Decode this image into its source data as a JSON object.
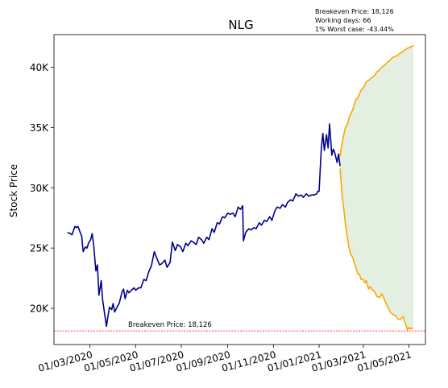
{
  "chart_data": {
    "type": "line",
    "title": "NLG",
    "ylabel": "Stock Price",
    "xlabel": "",
    "ylim": [
      17000,
      42700
    ],
    "xlim": [
      "2020-01-13",
      "2021-05-23"
    ],
    "y_ticks": [
      20000,
      25000,
      30000,
      35000,
      40000
    ],
    "y_tick_labels": [
      "20K",
      "25K",
      "30K",
      "35K",
      "40K"
    ],
    "x_ticks": [
      "2020-03-01",
      "2020-05-01",
      "2020-07-01",
      "2020-09-01",
      "2020-11-01",
      "2021-01-01",
      "2021-03-01",
      "2021-05-01"
    ],
    "x_tick_labels": [
      "01/03/2020",
      "01/05/2020",
      "01/07/2020",
      "01/09/2020",
      "01/11/2020",
      "01/01/2021",
      "01/03/2021",
      "01/05/2021"
    ],
    "grid": false,
    "legend": "none",
    "info_box": [
      "Breakeven Price: 18,126",
      "Working days: 66",
      "1% Worst case: -43.44%"
    ],
    "breakeven": {
      "value": 18126,
      "label": "Breakeven Price: 18,126",
      "color": "#ff0000"
    },
    "series": [
      {
        "role": "historical",
        "color": "#00008b",
        "x": [
          "2020-01-31",
          "2020-02-04",
          "2020-02-06",
          "2020-02-10",
          "2020-02-12",
          "2020-02-14",
          "2020-02-17",
          "2020-02-19",
          "2020-02-21",
          "2020-02-24",
          "2020-02-26",
          "2020-02-28",
          "2020-03-02",
          "2020-03-04",
          "2020-03-06",
          "2020-03-09",
          "2020-03-11",
          "2020-03-13",
          "2020-03-16",
          "2020-03-18",
          "2020-03-20",
          "2020-03-23",
          "2020-03-25",
          "2020-03-27",
          "2020-03-30",
          "2020-04-01",
          "2020-04-03",
          "2020-04-07",
          "2020-04-09",
          "2020-04-13",
          "2020-04-15",
          "2020-04-17",
          "2020-04-20",
          "2020-04-22",
          "2020-04-24",
          "2020-04-27",
          "2020-04-29",
          "2020-05-01",
          "2020-05-05",
          "2020-05-08",
          "2020-05-12",
          "2020-05-15",
          "2020-05-19",
          "2020-05-22",
          "2020-05-26",
          "2020-05-29",
          "2020-06-02",
          "2020-06-05",
          "2020-06-09",
          "2020-06-12",
          "2020-06-16",
          "2020-06-19",
          "2020-06-23",
          "2020-06-26",
          "2020-06-30",
          "2020-07-03",
          "2020-07-07",
          "2020-07-10",
          "2020-07-14",
          "2020-07-17",
          "2020-07-21",
          "2020-07-24",
          "2020-07-28",
          "2020-07-31",
          "2020-08-04",
          "2020-08-07",
          "2020-08-11",
          "2020-08-14",
          "2020-08-18",
          "2020-08-21",
          "2020-08-25",
          "2020-08-28",
          "2020-09-01",
          "2020-09-04",
          "2020-09-08",
          "2020-09-11",
          "2020-09-15",
          "2020-09-18",
          "2020-09-21",
          "2020-09-22",
          "2020-09-25",
          "2020-09-29",
          "2020-10-02",
          "2020-10-06",
          "2020-10-09",
          "2020-10-13",
          "2020-10-16",
          "2020-10-20",
          "2020-10-23",
          "2020-10-27",
          "2020-10-30",
          "2020-11-03",
          "2020-11-06",
          "2020-11-10",
          "2020-11-13",
          "2020-11-17",
          "2020-11-20",
          "2020-11-24",
          "2020-11-27",
          "2020-12-01",
          "2020-12-04",
          "2020-12-08",
          "2020-12-11",
          "2020-12-15",
          "2020-12-18",
          "2020-12-22",
          "2020-12-25",
          "2020-12-29",
          "2020-12-30",
          "2021-01-01",
          "2021-01-04",
          "2021-01-06",
          "2021-01-08",
          "2021-01-11",
          "2021-01-13",
          "2021-01-15",
          "2021-01-18",
          "2021-01-20",
          "2021-01-22",
          "2021-01-25",
          "2021-01-27",
          "2021-01-29"
        ],
        "y": [
          26300,
          26200,
          26100,
          26800,
          26700,
          26800,
          26300,
          26000,
          24700,
          25100,
          25000,
          25400,
          25700,
          26200,
          25200,
          23100,
          23600,
          21100,
          22300,
          20700,
          19800,
          18500,
          19300,
          20100,
          19900,
          20400,
          19700,
          20200,
          20400,
          21400,
          21600,
          20800,
          21500,
          21300,
          21400,
          21600,
          21700,
          21500,
          21700,
          21700,
          22400,
          22300,
          23100,
          23500,
          24700,
          24200,
          23600,
          23700,
          24000,
          23400,
          23800,
          25500,
          24800,
          25300,
          25100,
          24700,
          25400,
          25200,
          25600,
          25500,
          25300,
          25900,
          25700,
          25400,
          25900,
          25700,
          26600,
          26300,
          27100,
          27000,
          27600,
          27500,
          27900,
          27800,
          27900,
          27600,
          28400,
          28200,
          28500,
          25600,
          26300,
          26600,
          26500,
          26700,
          26600,
          27100,
          26900,
          27300,
          27200,
          27600,
          27300,
          28100,
          28400,
          28300,
          28600,
          28400,
          28800,
          29000,
          28900,
          29500,
          29300,
          29400,
          29200,
          29500,
          29300,
          29400,
          29400,
          29500,
          29700,
          29700,
          33300,
          34500,
          33100,
          34400,
          33300,
          35300,
          32700,
          33200,
          32900,
          32100,
          32800,
          31800
        ]
      },
      {
        "role": "forecast-upper",
        "color": "#ffa500",
        "x": [
          "2021-01-29",
          "2021-02-01",
          "2021-02-03",
          "2021-02-05",
          "2021-02-08",
          "2021-02-10",
          "2021-02-12",
          "2021-02-15",
          "2021-02-17",
          "2021-02-19",
          "2021-02-22",
          "2021-02-24",
          "2021-02-26",
          "2021-03-01",
          "2021-03-03",
          "2021-03-05",
          "2021-03-08",
          "2021-03-12",
          "2021-03-16",
          "2021-03-19",
          "2021-03-23",
          "2021-03-26",
          "2021-03-30",
          "2021-04-02",
          "2021-04-06",
          "2021-04-09",
          "2021-04-13",
          "2021-04-16",
          "2021-04-20",
          "2021-04-23",
          "2021-04-27",
          "2021-04-30",
          "2021-05-04",
          "2021-05-07"
        ],
        "y": [
          32600,
          33800,
          34400,
          35000,
          35300,
          35800,
          36100,
          36500,
          36900,
          37300,
          37500,
          37800,
          38100,
          38300,
          38500,
          38800,
          38900,
          39100,
          39300,
          39600,
          39800,
          40000,
          40200,
          40400,
          40600,
          40800,
          40900,
          41000,
          41200,
          41300,
          41500,
          41600,
          41700,
          41800
        ]
      },
      {
        "role": "forecast-lower",
        "color": "#ffa500",
        "x": [
          "2021-01-29",
          "2021-02-01",
          "2021-02-03",
          "2021-02-05",
          "2021-02-08",
          "2021-02-10",
          "2021-02-12",
          "2021-02-15",
          "2021-02-17",
          "2021-02-19",
          "2021-02-22",
          "2021-02-24",
          "2021-02-26",
          "2021-03-01",
          "2021-03-03",
          "2021-03-05",
          "2021-03-08",
          "2021-03-10",
          "2021-03-12",
          "2021-03-16",
          "2021-03-19",
          "2021-03-23",
          "2021-03-26",
          "2021-03-30",
          "2021-04-02",
          "2021-04-06",
          "2021-04-09",
          "2021-04-13",
          "2021-04-16",
          "2021-04-20",
          "2021-04-23",
          "2021-04-27",
          "2021-04-29",
          "2021-05-01",
          "2021-05-04",
          "2021-05-07"
        ],
        "y": [
          31600,
          29200,
          28200,
          27000,
          25800,
          25000,
          24500,
          24200,
          23800,
          23400,
          22800,
          22800,
          22400,
          22400,
          22100,
          22300,
          21600,
          21800,
          21600,
          21400,
          21000,
          20900,
          21200,
          20600,
          20200,
          19700,
          19500,
          19400,
          19100,
          19100,
          19300,
          18600,
          18200,
          18400,
          18300,
          18400
        ]
      }
    ]
  }
}
